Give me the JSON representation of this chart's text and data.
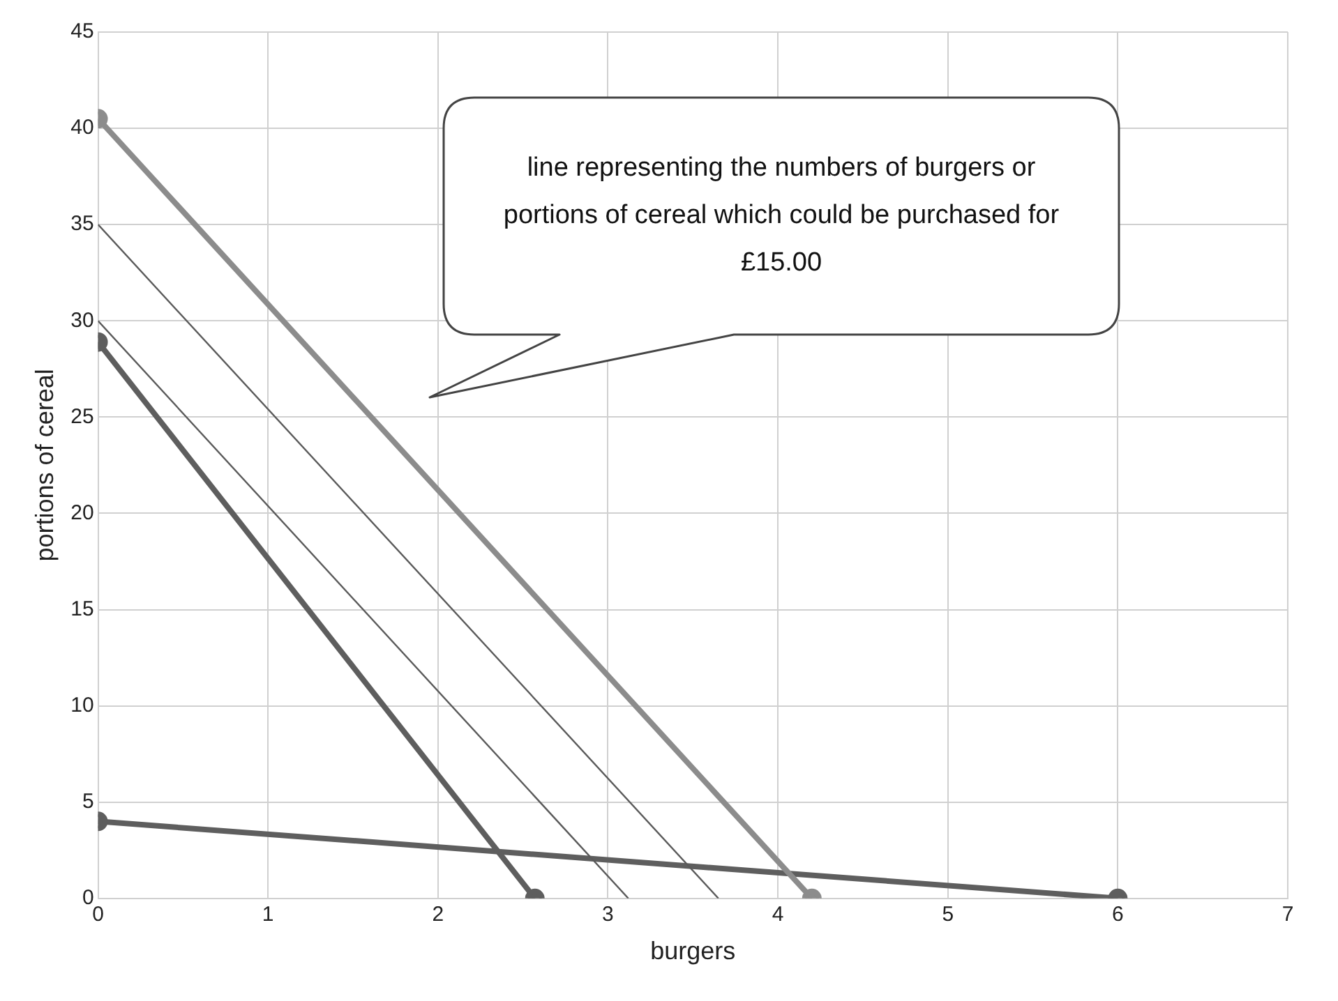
{
  "chart_data": {
    "type": "line",
    "xlabel": "burgers",
    "ylabel": "portions of cereal",
    "xlim": [
      0,
      7
    ],
    "xticks": [
      0,
      1,
      2,
      3,
      4,
      5,
      6,
      7
    ],
    "ylim": [
      0,
      45
    ],
    "yticks": [
      0,
      5,
      10,
      15,
      20,
      25,
      30,
      35,
      40,
      45
    ],
    "grid": true,
    "line_style": "solid",
    "series": [
      {
        "color": "#8c8c8c",
        "x": [
          0,
          4.2
        ],
        "values": [
          40.5,
          0
        ],
        "marker": "circle"
      },
      {
        "color": "#5a5a5a",
        "x": [
          0,
          3.65
        ],
        "values": [
          35,
          0
        ],
        "marker": "none"
      },
      {
        "color": "#5a5a5a",
        "x": [
          0,
          3.12
        ],
        "values": [
          30,
          0
        ],
        "marker": "none"
      },
      {
        "color": "#5e5e5e",
        "x": [
          0,
          2.57
        ],
        "values": [
          28.9,
          0
        ],
        "marker": "circle"
      },
      {
        "color": "#5e5e5e",
        "x": [
          0,
          6
        ],
        "values": [
          4,
          0
        ],
        "marker": "circle"
      }
    ],
    "annotations": [
      "line representing the numbers of burgers or portions of cereal which could be purchased for £15.00"
    ]
  }
}
